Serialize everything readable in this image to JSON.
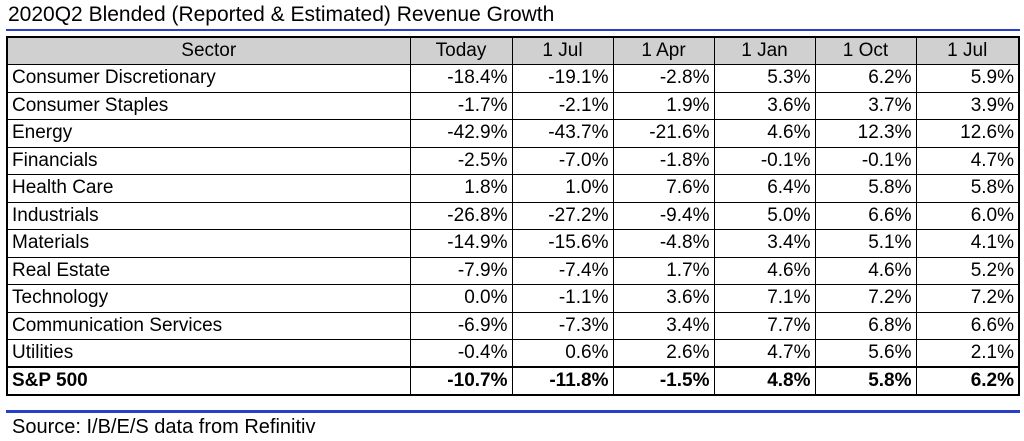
{
  "title": "2020Q2 Blended (Reported & Estimated) Revenue Growth",
  "source": "Source: I/B/E/S data from Refinitiv",
  "colors": {
    "rule": "#2a3fc8",
    "header_bg": "#d0d0d0"
  },
  "chart_data": {
    "type": "table",
    "columns": [
      "Sector",
      "Today",
      "1 Jul",
      "1 Apr",
      "1 Jan",
      "1 Oct",
      "1 Jul"
    ],
    "rows": [
      [
        "Consumer Discretionary",
        "-18.4%",
        "-19.1%",
        "-2.8%",
        "5.3%",
        "6.2%",
        "5.9%"
      ],
      [
        "Consumer Staples",
        "-1.7%",
        "-2.1%",
        "1.9%",
        "3.6%",
        "3.7%",
        "3.9%"
      ],
      [
        "Energy",
        "-42.9%",
        "-43.7%",
        "-21.6%",
        "4.6%",
        "12.3%",
        "12.6%"
      ],
      [
        "Financials",
        "-2.5%",
        "-7.0%",
        "-1.8%",
        "-0.1%",
        "-0.1%",
        "4.7%"
      ],
      [
        "Health Care",
        "1.8%",
        "1.0%",
        "7.6%",
        "6.4%",
        "5.8%",
        "5.8%"
      ],
      [
        "Industrials",
        "-26.8%",
        "-27.2%",
        "-9.4%",
        "5.0%",
        "6.6%",
        "6.0%"
      ],
      [
        "Materials",
        "-14.9%",
        "-15.6%",
        "-4.8%",
        "3.4%",
        "5.1%",
        "4.1%"
      ],
      [
        "Real Estate",
        "-7.9%",
        "-7.4%",
        "1.7%",
        "4.6%",
        "4.6%",
        "5.2%"
      ],
      [
        "Technology",
        "0.0%",
        "-1.1%",
        "3.6%",
        "7.1%",
        "7.2%",
        "7.2%"
      ],
      [
        "Communication Services",
        "-6.9%",
        "-7.3%",
        "3.4%",
        "7.7%",
        "6.8%",
        "6.6%"
      ],
      [
        "Utilities",
        "-0.4%",
        "0.6%",
        "2.6%",
        "4.7%",
        "5.6%",
        "2.1%"
      ]
    ],
    "total_row": [
      "S&P 500",
      "-10.7%",
      "-11.8%",
      "-1.5%",
      "4.8%",
      "5.8%",
      "6.2%"
    ]
  }
}
